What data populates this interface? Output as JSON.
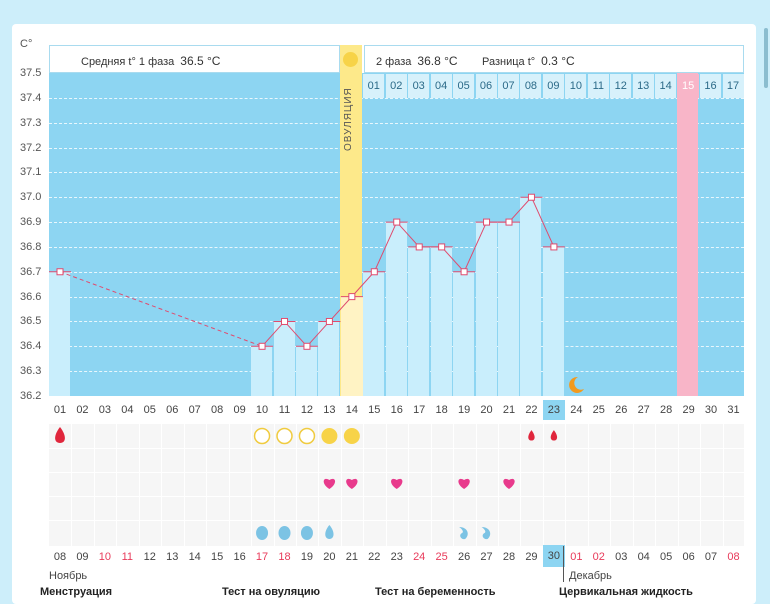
{
  "axis": {
    "unit": "C°",
    "y_ticks": [
      "37.5",
      "37.4",
      "37.3",
      "37.2",
      "37.1",
      "37.0",
      "36.9",
      "36.8",
      "36.7",
      "36.6",
      "36.5",
      "36.4",
      "36.3",
      "36.2"
    ]
  },
  "header": {
    "phase1_label": "Средняя t° 1 фаза",
    "phase1_value": "36.5 °C",
    "phase2_label": "2 фаза",
    "phase2_value": "36.8 °C",
    "diff_label": "Разница t°",
    "diff_value": "0.3 °C",
    "ovulation_label": "ОВУЛЯЦИЯ"
  },
  "cycle_days_phase2": [
    "01",
    "02",
    "03",
    "04",
    "05",
    "06",
    "07",
    "08",
    "09",
    "10",
    "11",
    "12",
    "13",
    "14",
    "15",
    "16",
    "17"
  ],
  "cycle_days_bottom": [
    "01",
    "02",
    "03",
    "04",
    "05",
    "06",
    "07",
    "08",
    "09",
    "10",
    "11",
    "12",
    "13",
    "14",
    "15",
    "16",
    "17",
    "18",
    "19",
    "20",
    "21",
    "22",
    "23",
    "24",
    "25",
    "26",
    "27",
    "28",
    "29",
    "30",
    "31"
  ],
  "selected_cycle_day": "23",
  "calendar_dates": [
    "08",
    "09",
    "10",
    "11",
    "12",
    "13",
    "14",
    "15",
    "16",
    "17",
    "18",
    "19",
    "20",
    "21",
    "22",
    "23",
    "24",
    "25",
    "26",
    "27",
    "28",
    "29",
    "30",
    "01",
    "02",
    "03",
    "04",
    "05",
    "06",
    "07",
    "08"
  ],
  "red_dates_idx": [
    2,
    3,
    9,
    10,
    16,
    17,
    23,
    24,
    30
  ],
  "selected_date_idx": 22,
  "months": {
    "first": "Ноябрь",
    "second": "Декабрь"
  },
  "sections": [
    "Менструация",
    "Тест на овуляцию",
    "Тест на беременность",
    "Цервикальная жидкость"
  ],
  "chart_data": {
    "type": "line",
    "x": [
      1,
      10,
      11,
      12,
      13,
      14,
      15,
      16,
      17,
      18,
      19,
      20,
      21,
      22,
      23
    ],
    "y": [
      36.7,
      36.4,
      36.5,
      36.4,
      36.5,
      36.6,
      36.7,
      36.9,
      36.8,
      36.8,
      36.7,
      36.9,
      36.9,
      37.0,
      36.8
    ],
    "ylim": [
      36.2,
      37.5
    ],
    "grid": true,
    "dashed_segment": [
      1,
      10
    ],
    "ovulation_day": 14,
    "highlighted_day": 29,
    "colors": {
      "line": "#e04b6e",
      "bar": "#c9eefc",
      "plot_bg": "#8dd5f2",
      "ovulation": "#fde98a",
      "highlight": "#f8b5c8"
    }
  },
  "symptoms": {
    "menstruation_days": [
      1,
      22,
      23
    ],
    "ovulation_test_open": [
      10,
      11,
      12
    ],
    "ovulation_test_full": [
      13,
      14
    ],
    "hearts_days": [
      13,
      14,
      16,
      19,
      21
    ],
    "fluid_full_days": [
      10,
      11,
      12
    ],
    "fluid_drop_days": [
      13
    ],
    "fluid_curl_days": [
      19,
      20
    ]
  }
}
